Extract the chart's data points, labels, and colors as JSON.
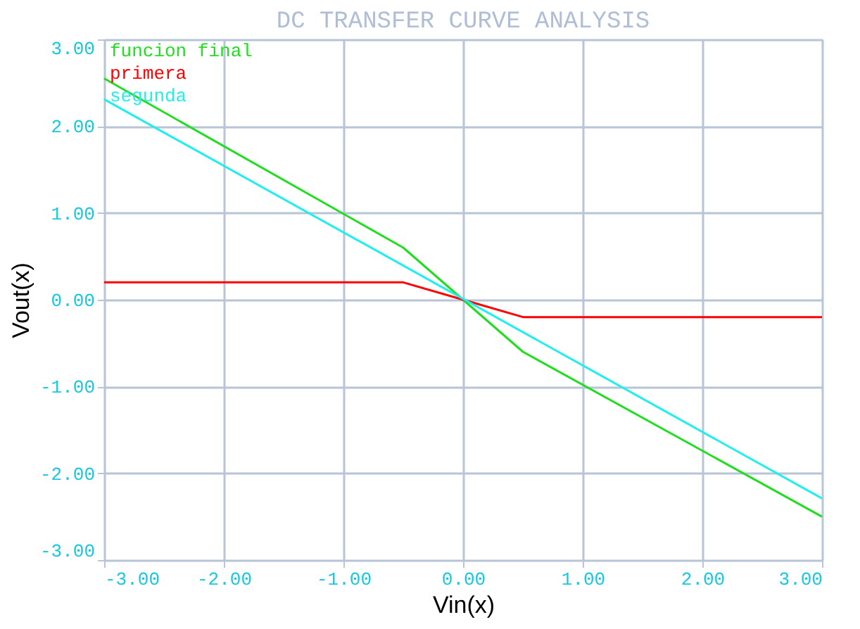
{
  "chart_data": {
    "type": "line",
    "title": "DC TRANSFER CURVE ANALYSIS",
    "xlabel": "Vin(x)",
    "ylabel": "Vout(x)",
    "xlim": [
      -3,
      3
    ],
    "ylim": [
      -3,
      3
    ],
    "xticks": [
      {
        "value": -3,
        "label": "-3.00"
      },
      {
        "value": -2,
        "label": "-2.00"
      },
      {
        "value": -1,
        "label": "-1.00"
      },
      {
        "value": 0,
        "label": "0.00"
      },
      {
        "value": 1,
        "label": "1.00"
      },
      {
        "value": 2,
        "label": "2.00"
      },
      {
        "value": 3,
        "label": "3.00"
      }
    ],
    "yticks": [
      {
        "value": -3,
        "label": "-3.00"
      },
      {
        "value": -2,
        "label": "-2.00"
      },
      {
        "value": -1,
        "label": "-1.00"
      },
      {
        "value": 0,
        "label": "0.00"
      },
      {
        "value": 1,
        "label": "1.00"
      },
      {
        "value": 2,
        "label": "2.00"
      },
      {
        "value": 3,
        "label": "3.00"
      }
    ],
    "grid": true,
    "legend": "top left",
    "marker": "none",
    "line_style": "solid",
    "series": [
      {
        "name": "funcion final",
        "color": "#22dd22",
        "x": [
          -3,
          -0.5,
          0,
          0.5,
          3
        ],
        "values": [
          2.55,
          0.6,
          0,
          -0.6,
          -2.5
        ]
      },
      {
        "name": "primera",
        "color": "#ff0000",
        "x": [
          -3,
          -0.5,
          0,
          0.5,
          3
        ],
        "values": [
          0.2,
          0.2,
          0,
          -0.2,
          -0.2
        ]
      },
      {
        "name": "segunda",
        "color": "#22eeee",
        "x": [
          -3,
          3
        ],
        "values": [
          2.31,
          -2.29
        ]
      }
    ]
  }
}
